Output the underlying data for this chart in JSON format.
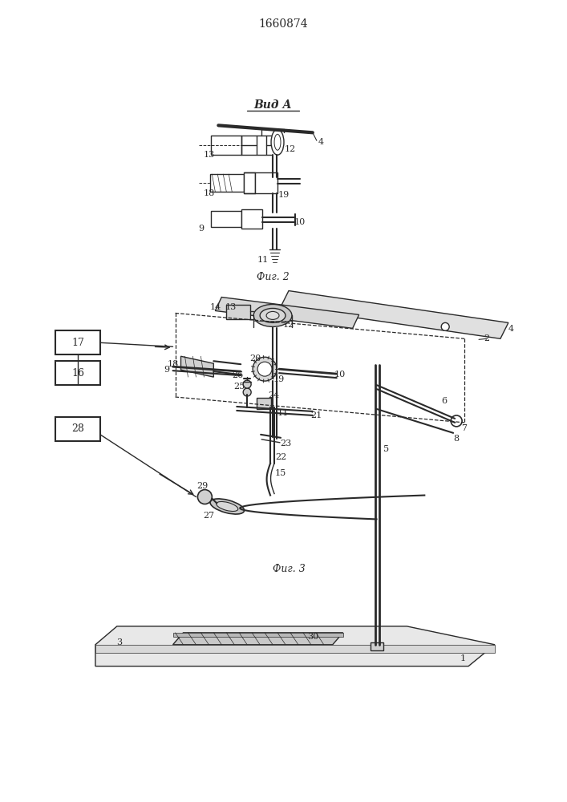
{
  "title": "1660874",
  "vida_text": "Вид A",
  "fig2_caption": "Фиг. 2",
  "fig3_caption": "Фиг. 3",
  "bg_color": "#ffffff",
  "line_color": "#2a2a2a"
}
